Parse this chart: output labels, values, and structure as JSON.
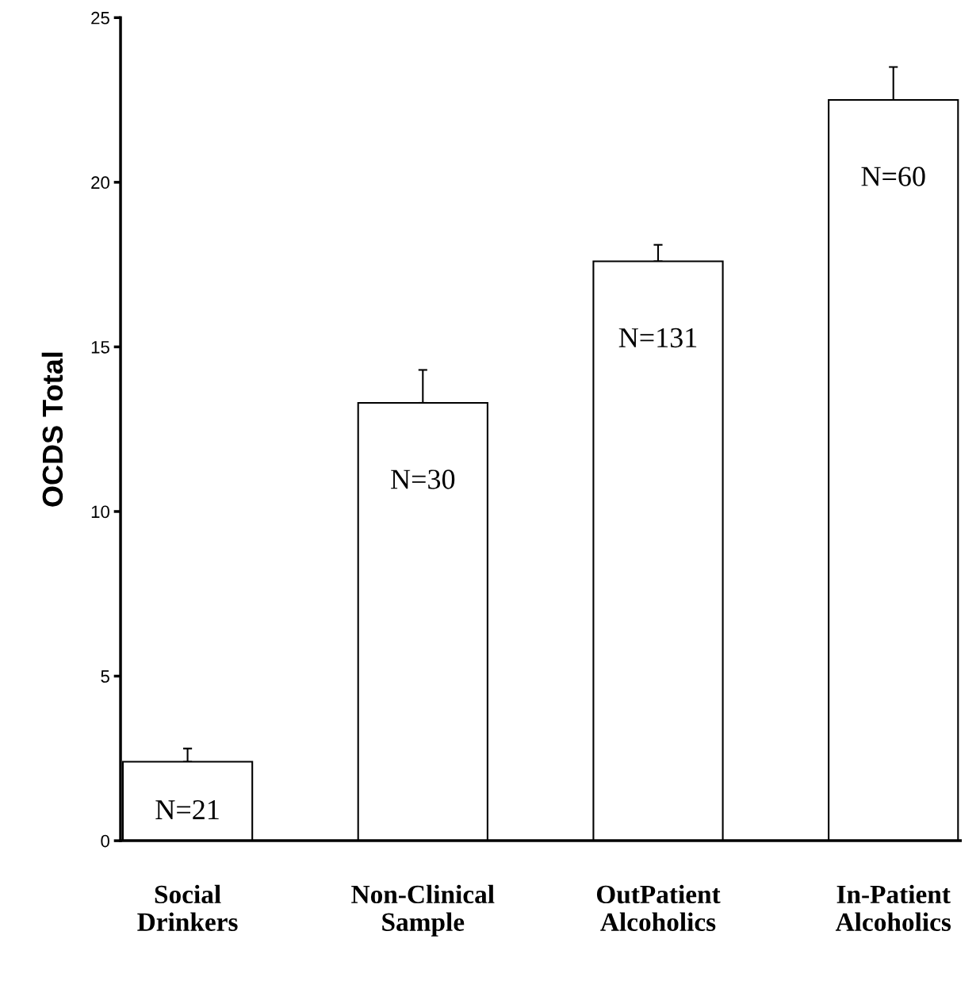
{
  "chart_data": {
    "type": "bar",
    "ylabel": "OCDS Total",
    "categories": [
      "Social\nDrinkers",
      "Non-Clinical\nSample",
      "OutPatient\nAlcoholics",
      "In-Patient\nAlcoholics"
    ],
    "values": [
      2.4,
      13.3,
      17.6,
      22.5
    ],
    "errors": [
      [
        2.4,
        2.8
      ],
      [
        13.3,
        14.3
      ],
      [
        17.6,
        18.1
      ],
      [
        22.5,
        23.5
      ]
    ],
    "color": "#ffffff",
    "ylim": [
      0,
      25
    ],
    "yticks": [
      0,
      5,
      10,
      15,
      20,
      25
    ],
    "grid": false,
    "legend": false,
    "annotations": [
      "N=21",
      "N=30",
      "N=131",
      "N=60"
    ]
  }
}
